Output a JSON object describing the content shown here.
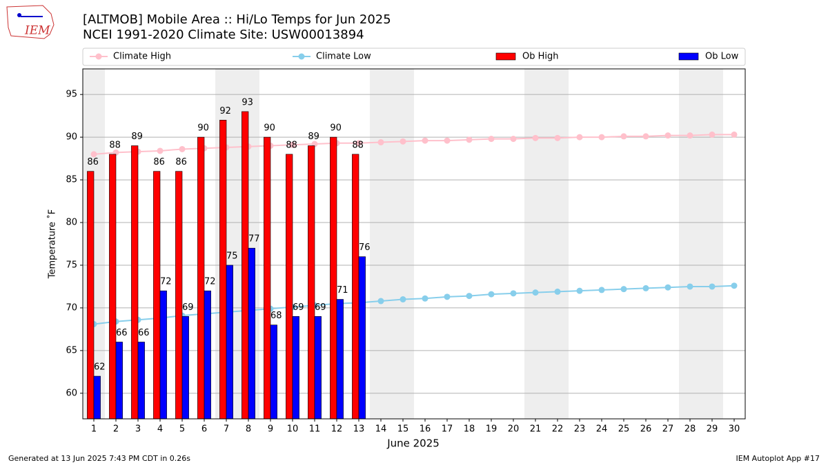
{
  "chart_data": {
    "type": "bar",
    "title": "[ALTMOB] Mobile Area :: Hi/Lo Temps for Jun 2025",
    "subtitle": "NCEI 1991-2020 Climate Site: USW00013894",
    "xlabel": "June 2025",
    "ylabel": "Temperature ˚F",
    "x": [
      1,
      2,
      3,
      4,
      5,
      6,
      7,
      8,
      9,
      10,
      11,
      12,
      13,
      14,
      15,
      16,
      17,
      18,
      19,
      20,
      21,
      22,
      23,
      24,
      25,
      26,
      27,
      28,
      29,
      30
    ],
    "xlim": [
      0.5,
      30.5
    ],
    "xticks": [
      1,
      2,
      3,
      4,
      5,
      6,
      7,
      8,
      9,
      10,
      11,
      12,
      13,
      14,
      15,
      16,
      17,
      18,
      19,
      20,
      21,
      22,
      23,
      24,
      25,
      26,
      27,
      28,
      29,
      30
    ],
    "ylim": [
      57,
      98
    ],
    "yticks": [
      60,
      65,
      70,
      75,
      80,
      85,
      90,
      95
    ],
    "grid": true,
    "weekend_days": [
      1,
      7,
      8,
      14,
      15,
      21,
      22,
      28,
      29
    ],
    "legend": "top",
    "series": [
      {
        "name": "Climate High",
        "type": "line",
        "color": "#ffc0cb",
        "values": [
          88.0,
          88.2,
          88.3,
          88.4,
          88.6,
          88.7,
          88.8,
          88.9,
          89.0,
          89.1,
          89.2,
          89.3,
          89.3,
          89.4,
          89.5,
          89.6,
          89.6,
          89.7,
          89.8,
          89.8,
          89.9,
          89.9,
          90.0,
          90.0,
          90.1,
          90.1,
          90.2,
          90.2,
          90.3,
          90.3
        ]
      },
      {
        "name": "Climate Low",
        "type": "line",
        "color": "#87ceeb",
        "values": [
          68.1,
          68.4,
          68.6,
          68.8,
          69.1,
          69.3,
          69.5,
          69.7,
          69.9,
          70.1,
          70.3,
          70.5,
          70.6,
          70.8,
          71.0,
          71.1,
          71.3,
          71.4,
          71.6,
          71.7,
          71.8,
          71.9,
          72.0,
          72.1,
          72.2,
          72.3,
          72.4,
          72.5,
          72.5,
          72.6
        ]
      },
      {
        "name": "Ob High",
        "type": "bar",
        "color": "#ff0000",
        "values": [
          86,
          88,
          89,
          86,
          86,
          90,
          92,
          93,
          90,
          88,
          89,
          90,
          88,
          null,
          null,
          null,
          null,
          null,
          null,
          null,
          null,
          null,
          null,
          null,
          null,
          null,
          null,
          null,
          null,
          null
        ]
      },
      {
        "name": "Ob Low",
        "type": "bar",
        "color": "#0000ff",
        "values": [
          62,
          66,
          66,
          72,
          69,
          72,
          75,
          77,
          68,
          69,
          69,
          71,
          76,
          null,
          null,
          null,
          null,
          null,
          null,
          null,
          null,
          null,
          null,
          null,
          null,
          null,
          null,
          null,
          null,
          null
        ]
      }
    ],
    "footer_left": "Generated at 13 Jun 2025 7:43 PM CDT in 0.26s",
    "footer_right": "IEM Autoplot App #17"
  }
}
